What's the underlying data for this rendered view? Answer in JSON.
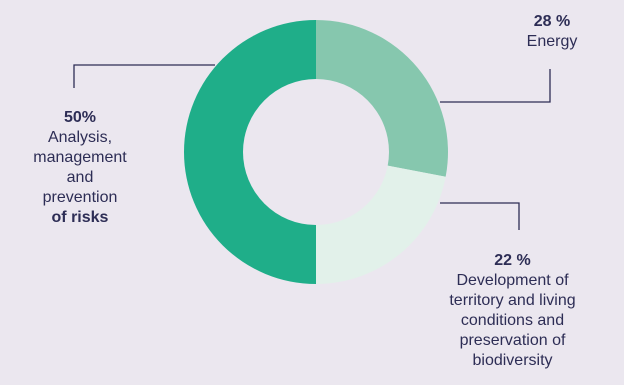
{
  "chart_data": {
    "type": "pie",
    "donut": true,
    "slices": [
      {
        "key": "energy",
        "value": 28,
        "percent_label": "28 %",
        "label_lines": [
          "Energy"
        ],
        "color": "#86c7ae"
      },
      {
        "key": "territory",
        "value": 22,
        "percent_label": "22 %",
        "label_lines": [
          "Development of",
          "territory and living",
          "conditions and",
          "preservation of",
          "biodiversity"
        ],
        "color": "#e2f1ea"
      },
      {
        "key": "risks",
        "value": 50,
        "percent_label": "50%",
        "label_lines": [
          "Analysis,",
          "management",
          "and",
          "prevention"
        ],
        "label_bold_line": "of risks",
        "color": "#1fae89"
      }
    ],
    "start_angle_deg": 0,
    "direction": "clockwise",
    "legend": "none"
  },
  "colors": {
    "background": "#ebe7ef",
    "text": "#2d2d55",
    "leader_line": "#2d2d55"
  }
}
